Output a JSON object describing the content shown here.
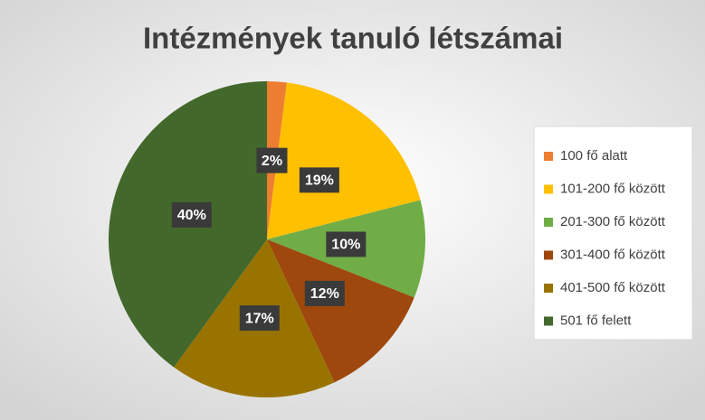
{
  "chart_data": {
    "type": "pie",
    "title": "Intézmények tanuló létszámai",
    "categories": [
      "100 fő alatt",
      "101-200 fő között",
      "201-300 fő között",
      "301-400 fő között",
      "401-500 fő között",
      "501 fő felett"
    ],
    "values": [
      2,
      19,
      10,
      12,
      17,
      40
    ],
    "value_labels": [
      "2%",
      "19%",
      "10%",
      "12%",
      "17%",
      "40%"
    ],
    "colors": [
      "#ed7d31",
      "#ffc000",
      "#70ad47",
      "#9e480e",
      "#997300",
      "#43682b"
    ],
    "legend": "right"
  }
}
